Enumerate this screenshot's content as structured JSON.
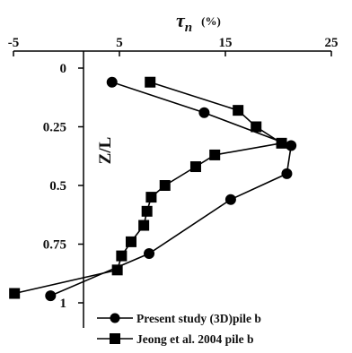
{
  "chart_data": {
    "type": "line",
    "x_axis": {
      "label_symbol": "τ",
      "label_sub": "n",
      "unit": "(%)",
      "position": "top",
      "range": [
        -5,
        25
      ],
      "ticks": [
        -5,
        5,
        15,
        25
      ]
    },
    "y_axis": {
      "label": "Z/L",
      "inverted": true,
      "range": [
        0,
        1
      ],
      "ticks": [
        0,
        0.25,
        0.5,
        0.75,
        1
      ],
      "tick_labels": [
        "0",
        "0.25",
        "0.5",
        "0.75",
        "1"
      ]
    },
    "grid": false,
    "legend_position": "bottom-right",
    "series": [
      {
        "name": "Present study (3D)pile b",
        "marker": "circle",
        "points": [
          {
            "x": 4.3,
            "y": 0.06
          },
          {
            "x": 13.0,
            "y": 0.19
          },
          {
            "x": 21.2,
            "y": 0.33
          },
          {
            "x": 20.8,
            "y": 0.45
          },
          {
            "x": 15.5,
            "y": 0.56
          },
          {
            "x": 7.8,
            "y": 0.79
          },
          {
            "x": -1.5,
            "y": 0.97
          }
        ]
      },
      {
        "name": "Jeong et al. 2004  pile b",
        "marker": "square",
        "points": [
          {
            "x": 7.9,
            "y": 0.06
          },
          {
            "x": 16.2,
            "y": 0.18
          },
          {
            "x": 17.9,
            "y": 0.25
          },
          {
            "x": 20.3,
            "y": 0.32
          },
          {
            "x": 14.0,
            "y": 0.37
          },
          {
            "x": 12.2,
            "y": 0.42
          },
          {
            "x": 9.3,
            "y": 0.5
          },
          {
            "x": 8.0,
            "y": 0.55
          },
          {
            "x": 7.6,
            "y": 0.61
          },
          {
            "x": 7.3,
            "y": 0.67
          },
          {
            "x": 6.1,
            "y": 0.74
          },
          {
            "x": 5.2,
            "y": 0.8
          },
          {
            "x": 4.8,
            "y": 0.86
          },
          {
            "x": -4.9,
            "y": 0.96
          }
        ]
      }
    ]
  }
}
